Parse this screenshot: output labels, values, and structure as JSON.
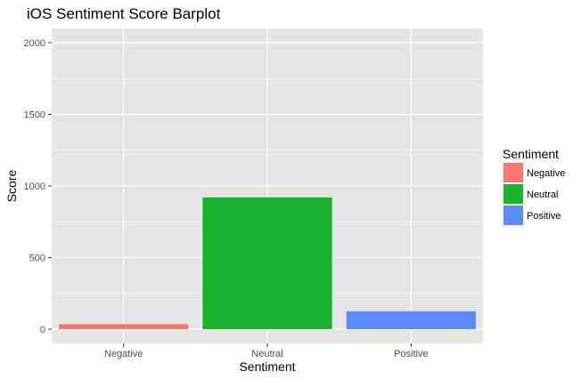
{
  "chart_data": {
    "type": "bar",
    "title": "iOS Sentiment Score Barplot",
    "xlabel": "Sentiment",
    "ylabel": "Score",
    "categories": [
      "Negative",
      "Neutral",
      "Positive"
    ],
    "values": [
      35,
      920,
      125
    ],
    "colors": [
      "#F8766D",
      "#1AB32E",
      "#5B8DFA"
    ],
    "ylim": [
      0,
      2000
    ],
    "yticks": [
      0,
      500,
      1000,
      1500,
      2000
    ],
    "ytick_labels": [
      "0",
      "500",
      "1000",
      "1500",
      "2000"
    ],
    "grid": true,
    "legend": {
      "title": "Sentiment",
      "position": "right",
      "entries": [
        "Negative",
        "Neutral",
        "Positive"
      ]
    },
    "panel_background": "#E5E5E5",
    "grid_color": "#FFFFFF"
  }
}
